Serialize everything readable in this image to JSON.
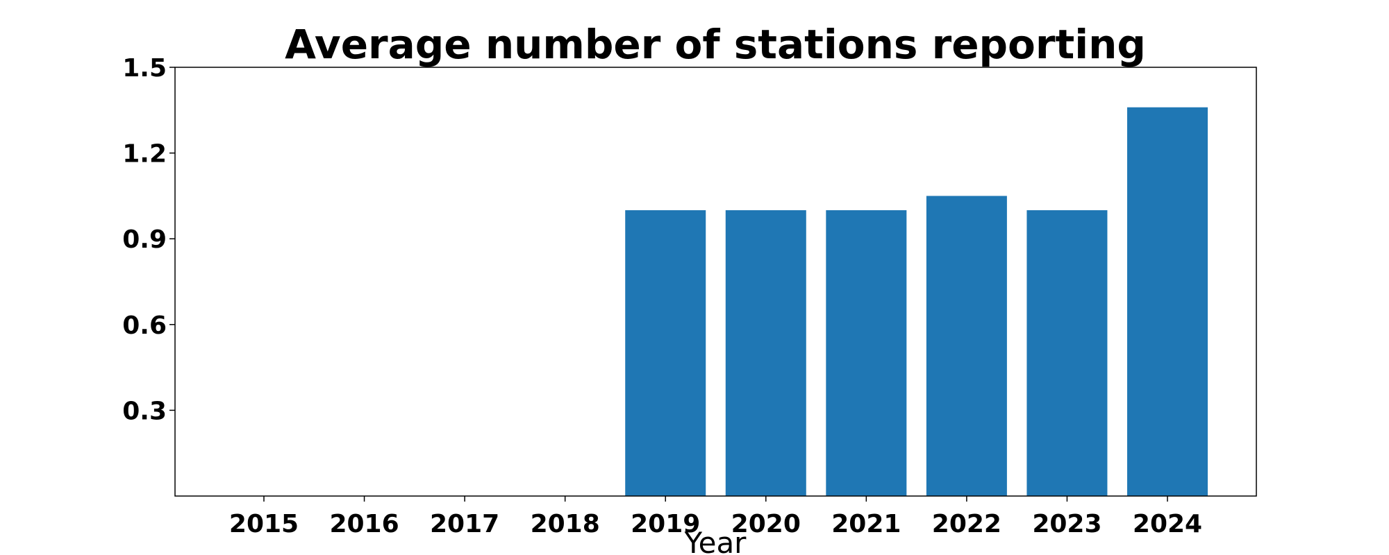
{
  "chart_data": {
    "type": "bar",
    "title": "Average number of stations reporting",
    "xlabel": "Year",
    "ylabel": "",
    "categories": [
      "2015",
      "2016",
      "2017",
      "2018",
      "2019",
      "2020",
      "2021",
      "2022",
      "2023",
      "2024"
    ],
    "values": [
      0,
      0,
      0,
      0,
      1.0,
      1.0,
      1.0,
      1.05,
      1.0,
      1.36
    ],
    "ylim": [
      0,
      1.5
    ],
    "yticks": [
      0.3,
      0.6,
      0.9,
      1.2,
      1.5
    ],
    "ytick_labels": [
      "0.3",
      "0.6",
      "0.9",
      "1.2",
      "1.5"
    ],
    "grid": false,
    "legend": "none",
    "colors": {
      "bar": "#1f77b4",
      "axis": "#000000",
      "background": "#ffffff"
    }
  }
}
